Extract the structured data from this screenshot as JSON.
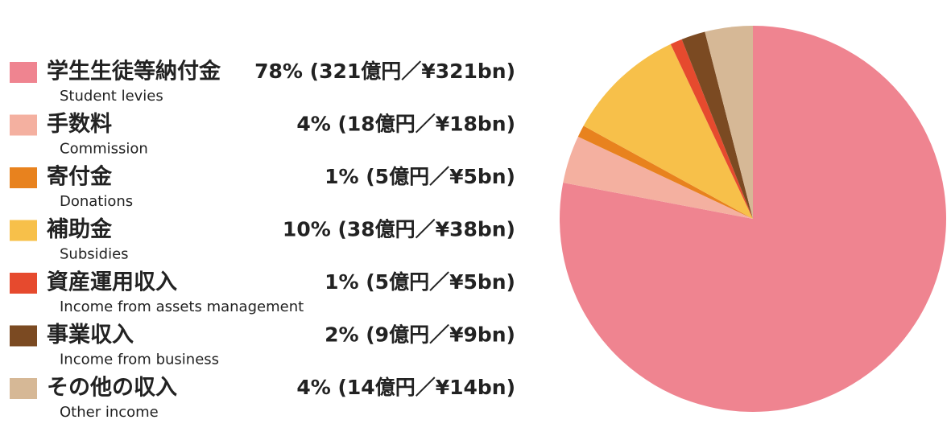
{
  "chart_data": {
    "type": "pie",
    "categories": [
      "学生生徒等納付金",
      "手数料",
      "寄付金",
      "補助金",
      "資産運用収入",
      "事業収入",
      "その他の収入"
    ],
    "categories_en": [
      "Student levies",
      "Commission",
      "Donations",
      "Subsidies",
      "Income from assets management",
      "Income from business",
      "Other income"
    ],
    "values": [
      78,
      4,
      1,
      10,
      1,
      2,
      4
    ],
    "value_labels": [
      "78% (321億円／¥321bn)",
      "4% (18億円／¥18bn)",
      "1% (5億円／¥5bn)",
      "10% (38億円／¥38bn)",
      "1% (5億円／¥5bn)",
      "2% (9億円／¥9bn)",
      "4% (14億円／¥14bn)"
    ],
    "colors": [
      "#ef8490",
      "#f4b0a0",
      "#e8821e",
      "#f7c04a",
      "#e64a2e",
      "#7b4a22",
      "#d6b896"
    ]
  }
}
